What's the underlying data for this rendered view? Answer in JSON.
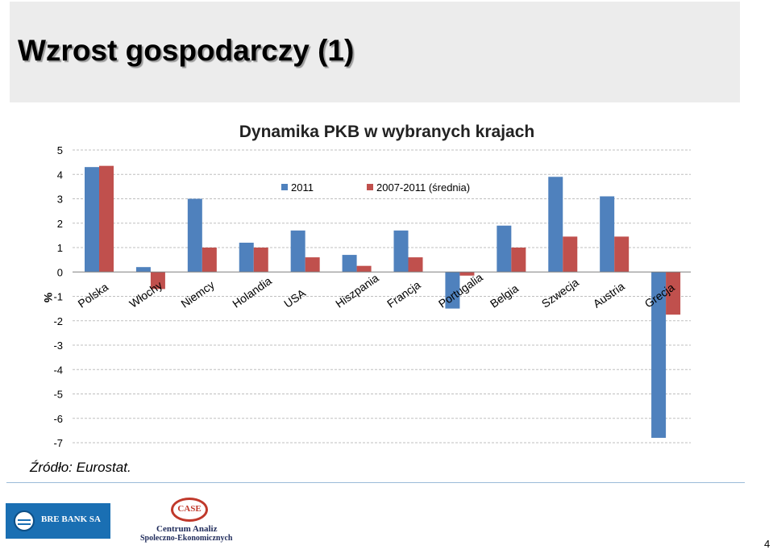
{
  "slide": {
    "title": "Wzrost gospodarczy (1)",
    "source": "Źródło: Eurostat.",
    "page_number": "4"
  },
  "logos": {
    "bre": "BRE BANK SA",
    "case_mark": "CASE",
    "case_line1": "Centrum Analiz",
    "case_line2": "Spoleczno-Ekonomicznych"
  },
  "chart_data": {
    "type": "bar",
    "title": "Dynamika PKB w wybranych krajach",
    "ylabel": "%",
    "xlabel": "",
    "ylim": [
      -7,
      5
    ],
    "yticks": [
      5,
      4,
      3,
      2,
      1,
      0,
      -1,
      -2,
      -3,
      -4,
      -5,
      -6,
      -7
    ],
    "grid": true,
    "legend_position": "top-center",
    "categories": [
      "Polska",
      "Włochy",
      "Niemcy",
      "Holandia",
      "USA",
      "Hiszpania",
      "Francja",
      "Portugalia",
      "Belgia",
      "Szwecja",
      "Austria",
      "Grecja"
    ],
    "series": [
      {
        "name": "2011",
        "color": "#4f81bd",
        "values": [
          4.3,
          0.2,
          3.0,
          1.2,
          1.7,
          0.7,
          1.7,
          -1.5,
          1.9,
          3.9,
          3.1,
          -6.8
        ]
      },
      {
        "name": "2007-2011 (średnia)",
        "color": "#c0504d",
        "values": [
          4.35,
          -0.7,
          1.0,
          1.0,
          0.6,
          0.25,
          0.6,
          -0.15,
          1.0,
          1.45,
          1.45,
          -1.75
        ]
      }
    ]
  }
}
